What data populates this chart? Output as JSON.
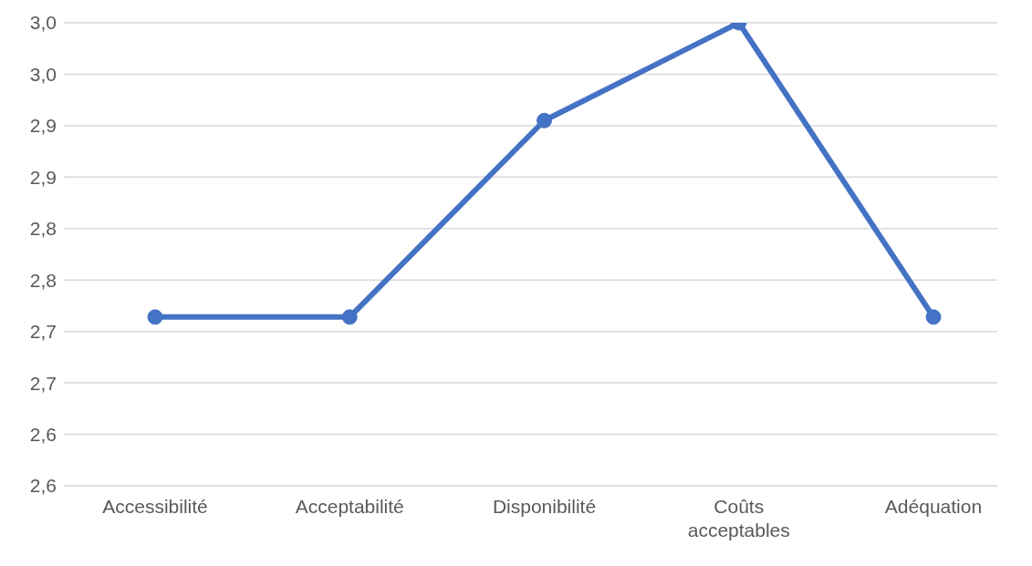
{
  "chart_data": {
    "type": "line",
    "categories": [
      "Accessibilité",
      "Acceptabilité",
      "Disponibilité",
      "Coûts acceptables",
      "Adéquation"
    ],
    "series": [
      {
        "color": "#4472c4",
        "values": [
          2.714,
          2.714,
          2.905,
          3.0,
          2.714
        ]
      }
    ],
    "ylim": [
      2.55,
      3.0
    ],
    "yticks": [
      {
        "value": 2.55,
        "label": "2,6"
      },
      {
        "value": 2.6,
        "label": "2,6"
      },
      {
        "value": 2.65,
        "label": "2,7"
      },
      {
        "value": 2.7,
        "label": "2,7"
      },
      {
        "value": 2.75,
        "label": "2,8"
      },
      {
        "value": 2.8,
        "label": "2,8"
      },
      {
        "value": 2.85,
        "label": "2,9"
      },
      {
        "value": 2.9,
        "label": "2,9"
      },
      {
        "value": 2.95,
        "label": "3,0"
      },
      {
        "value": 3.0,
        "label": "3,0"
      }
    ],
    "grid": "y",
    "marker": "circle",
    "line_style": "solid",
    "legend": false
  }
}
